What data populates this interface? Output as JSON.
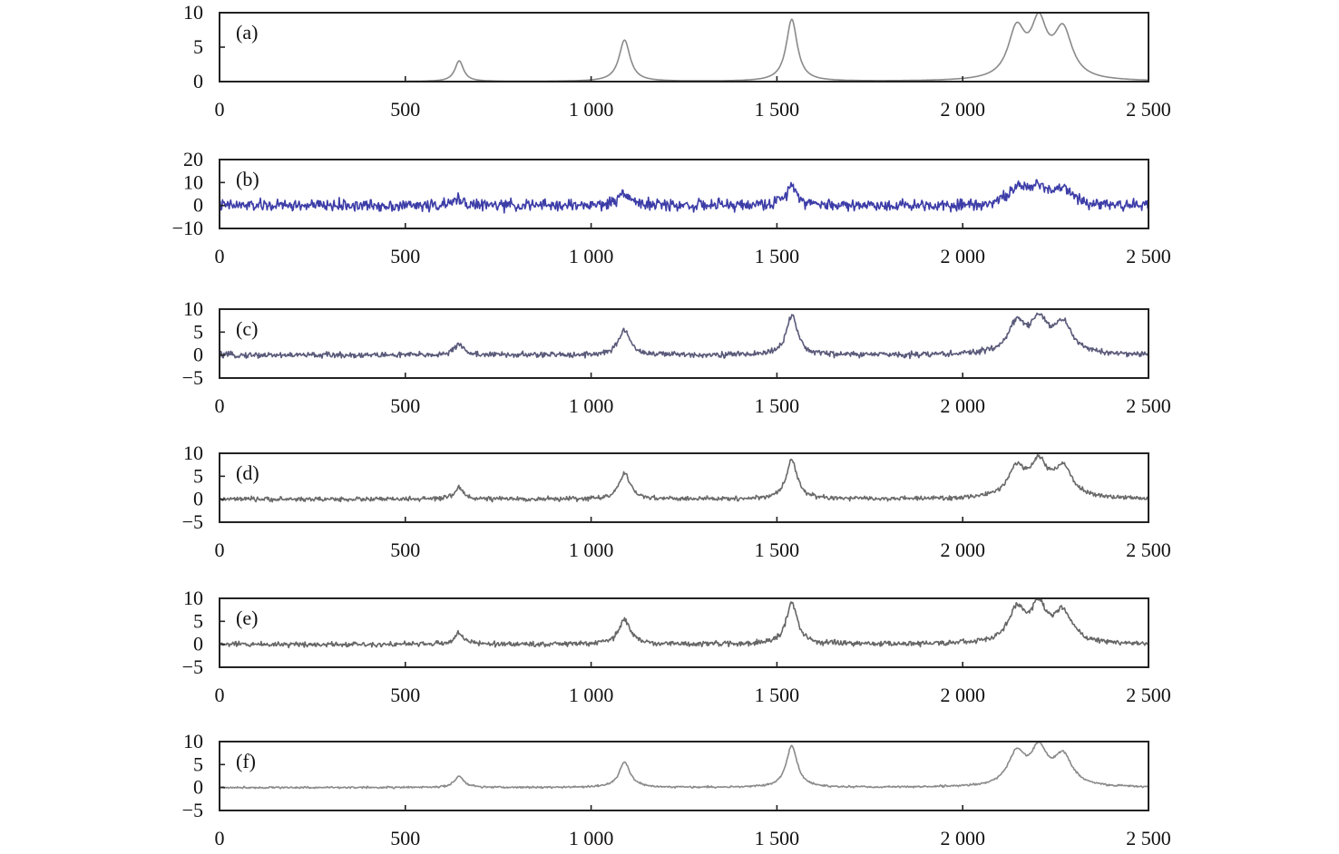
{
  "chart_data": [
    {
      "type": "line",
      "panel_label": "(a)",
      "xlim": [
        0,
        2500
      ],
      "ylim": [
        0,
        10
      ],
      "xticks": [
        0,
        500,
        1000,
        1500,
        2000,
        2500
      ],
      "xtick_labels": [
        "0",
        "500",
        "1 000",
        "1 500",
        "2 000",
        "2 500"
      ],
      "yticks": [
        0,
        5,
        10
      ],
      "ytick_labels": [
        "0",
        "5",
        "10"
      ],
      "line_color": "#8a8a8a",
      "x_start": 500,
      "noise": 0,
      "peaks": [
        [
          645,
          3,
          14
        ],
        [
          1090,
          6,
          18
        ],
        [
          1540,
          9,
          18
        ],
        [
          2145,
          7,
          28
        ],
        [
          2205,
          7.5,
          26
        ],
        [
          2270,
          7,
          30
        ]
      ],
      "title": "",
      "xlabel": "",
      "ylabel": ""
    },
    {
      "type": "line",
      "panel_label": "(b)",
      "xlim": [
        0,
        2500
      ],
      "ylim": [
        -10,
        20
      ],
      "xticks": [
        0,
        500,
        1000,
        1500,
        2000,
        2500
      ],
      "xtick_labels": [
        "0",
        "500",
        "1 000",
        "1 500",
        "2 000",
        "2 500"
      ],
      "yticks": [
        -10,
        0,
        10,
        20
      ],
      "ytick_labels": [
        "−10",
        "0",
        "10",
        "20"
      ],
      "line_color": "#3d3da8",
      "x_start": 0,
      "noise": 1.8,
      "peaks": [
        [
          645,
          3,
          14
        ],
        [
          1090,
          6,
          18
        ],
        [
          1540,
          9,
          18
        ],
        [
          2145,
          7,
          28
        ],
        [
          2205,
          7.5,
          26
        ],
        [
          2270,
          7,
          30
        ]
      ],
      "title": "",
      "xlabel": "",
      "ylabel": ""
    },
    {
      "type": "line",
      "panel_label": "(c)",
      "xlim": [
        0,
        2500
      ],
      "ylim": [
        -5,
        10
      ],
      "xticks": [
        0,
        500,
        1000,
        1500,
        2000,
        2500
      ],
      "xtick_labels": [
        "0",
        "500",
        "1 000",
        "1 500",
        "2 000",
        "2 500"
      ],
      "yticks": [
        -5,
        0,
        5,
        10
      ],
      "ytick_labels": [
        "−5",
        "0",
        "5",
        "10"
      ],
      "line_color": "#5a5a7a",
      "x_start": 0,
      "noise": 0.45,
      "peaks": [
        [
          645,
          2.5,
          14
        ],
        [
          1090,
          5.5,
          18
        ],
        [
          1540,
          8.5,
          18
        ],
        [
          2145,
          6.5,
          28
        ],
        [
          2205,
          7,
          26
        ],
        [
          2270,
          6.5,
          30
        ]
      ],
      "title": "",
      "xlabel": "",
      "ylabel": ""
    },
    {
      "type": "line",
      "panel_label": "(d)",
      "xlim": [
        0,
        2500
      ],
      "ylim": [
        -5,
        10
      ],
      "xticks": [
        0,
        500,
        1000,
        1500,
        2000,
        2500
      ],
      "xtick_labels": [
        "0",
        "500",
        "1 000",
        "1 500",
        "2 000",
        "2 500"
      ],
      "yticks": [
        -5,
        0,
        5,
        10
      ],
      "ytick_labels": [
        "−5",
        "0",
        "5",
        "10"
      ],
      "line_color": "#6a6a6a",
      "x_start": 0,
      "noise": 0.35,
      "peaks": [
        [
          645,
          2.5,
          14
        ],
        [
          1090,
          5.5,
          18
        ],
        [
          1540,
          8.5,
          18
        ],
        [
          2145,
          6.5,
          28
        ],
        [
          2205,
          7,
          26
        ],
        [
          2270,
          6.5,
          30
        ]
      ],
      "title": "",
      "xlabel": "",
      "ylabel": ""
    },
    {
      "type": "line",
      "panel_label": "(e)",
      "xlim": [
        0,
        2500
      ],
      "ylim": [
        -5,
        10
      ],
      "xticks": [
        0,
        500,
        1000,
        1500,
        2000,
        2500
      ],
      "xtick_labels": [
        "0",
        "500",
        "1 000",
        "1 500",
        "2 000",
        "2 500"
      ],
      "yticks": [
        -5,
        0,
        5,
        10
      ],
      "ytick_labels": [
        "−5",
        "0",
        "5",
        "10"
      ],
      "line_color": "#666666",
      "x_start": 0,
      "noise": 0.4,
      "peaks": [
        [
          645,
          2.5,
          14
        ],
        [
          1090,
          5.5,
          18
        ],
        [
          1540,
          9,
          18
        ],
        [
          2145,
          7,
          28
        ],
        [
          2205,
          7.5,
          26
        ],
        [
          2270,
          6.5,
          30
        ]
      ],
      "title": "",
      "xlabel": "",
      "ylabel": ""
    },
    {
      "type": "line",
      "panel_label": "(f)",
      "xlim": [
        0,
        2500
      ],
      "ylim": [
        -5,
        10
      ],
      "xticks": [
        0,
        500,
        1000,
        1500,
        2000,
        2500
      ],
      "xtick_labels": [
        "0",
        "500",
        "1 000",
        "1 500",
        "2 000",
        "2 500"
      ],
      "yticks": [
        -5,
        0,
        5,
        10
      ],
      "ytick_labels": [
        "−5",
        "0",
        "5",
        "10"
      ],
      "line_color": "#8a8a8a",
      "x_start": 0,
      "noise": 0.15,
      "peaks": [
        [
          645,
          2.5,
          14
        ],
        [
          1090,
          5.5,
          18
        ],
        [
          1540,
          9,
          18
        ],
        [
          2145,
          7,
          28
        ],
        [
          2205,
          7.5,
          26
        ],
        [
          2270,
          6.5,
          30
        ]
      ],
      "title": "",
      "xlabel": "",
      "ylabel": ""
    }
  ]
}
